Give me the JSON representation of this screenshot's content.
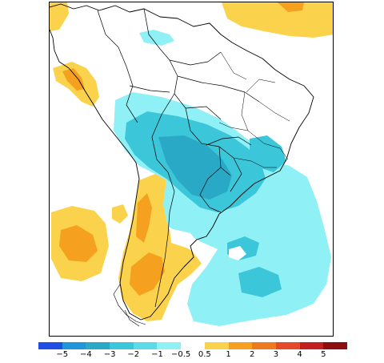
{
  "map": {
    "region": "South America",
    "frame_border_color": "#000000",
    "land_outline_color": "#000000"
  },
  "legend": {
    "colors": [
      "#1e4ee6",
      "#1e96d7",
      "#2aa9c6",
      "#3cc6d9",
      "#5bdbe8",
      "#8ff0f5",
      "#ffffff",
      "#fad24b",
      "#f5a01e",
      "#ee7a1e",
      "#e44a2a",
      "#c42020",
      "#8c0e0e"
    ],
    "labels": [
      "−5",
      "−4",
      "−3",
      "−2",
      "−1",
      "−0.5",
      "0.5",
      "1",
      "2",
      "3",
      "4",
      "5"
    ]
  },
  "anomaly_colors": {
    "strong_negative": "#2aa9c6",
    "moderate_negative": "#3cc6d9",
    "weak_negative": "#8ff0f5",
    "weak_positive": "#fad24b",
    "moderate_positive": "#f5a01e"
  }
}
